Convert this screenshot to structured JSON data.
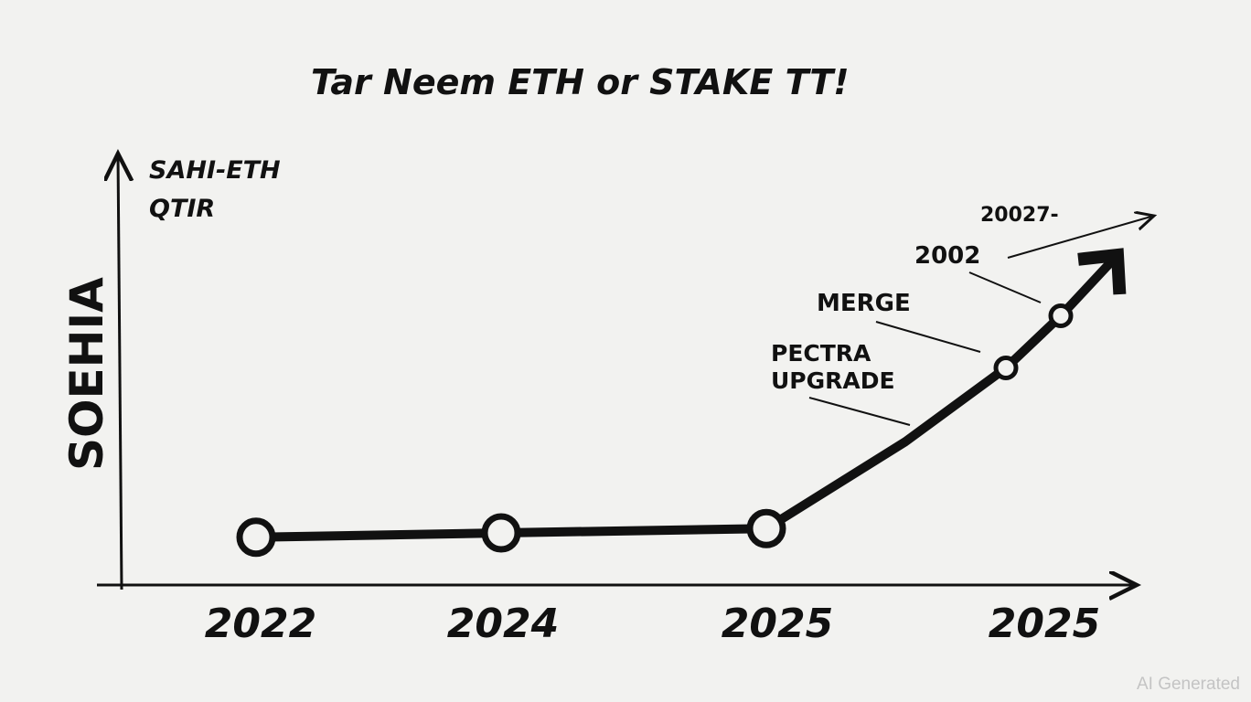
{
  "chart_data": {
    "type": "line",
    "title": "Tar Neem ETH or STAKE TT!",
    "legend_note": [
      "SAHI-ETH",
      "QTIR"
    ],
    "ylabel": "SOEHIA",
    "xlabel": "",
    "x_tick_labels": [
      "2022",
      "2024",
      "2025",
      "2025"
    ],
    "ylim": [
      0,
      100
    ],
    "grid": false,
    "series": [
      {
        "points": [
          {
            "x": "2022",
            "y": 11,
            "marker": true
          },
          {
            "x": "2024",
            "y": 12,
            "marker": true
          },
          {
            "x": "2025",
            "y": 13,
            "marker": true
          },
          {
            "x": "2025.5",
            "y": 33,
            "marker": false
          },
          {
            "x": "2025.8",
            "y": 50,
            "marker": true
          },
          {
            "x": "2025.9",
            "y": 62,
            "marker": true
          },
          {
            "x": "2026",
            "y": 76,
            "marker": false
          }
        ]
      }
    ],
    "annotations": [
      {
        "text": "PECTRA",
        "text2": "UPGRADE"
      },
      {
        "text": "MERGE"
      },
      {
        "text": "2002"
      },
      {
        "text": "20027-"
      }
    ],
    "line_color": "#111111",
    "background": "#f2f2f0"
  },
  "watermark": "AI Generated"
}
